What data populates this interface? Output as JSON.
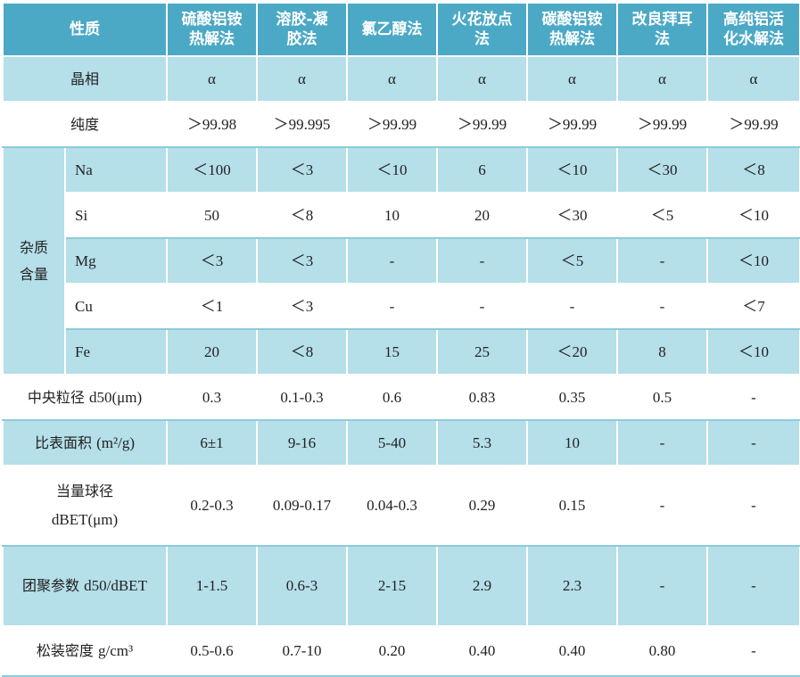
{
  "header": {
    "property": "性质",
    "methods": [
      {
        "line1": "硫酸铝铵",
        "line2": "热解法"
      },
      {
        "line1": "溶胶-凝",
        "line2": "胶法"
      },
      {
        "line1": "氯乙醇法",
        "line2": ""
      },
      {
        "line1": "火花放点",
        "line2": "法"
      },
      {
        "line1": "碳酸铝铵",
        "line2": "热解法"
      },
      {
        "line1": "改良拜耳",
        "line2": "法"
      },
      {
        "line1": "高纯铝活",
        "line2": "化水解法"
      }
    ]
  },
  "rows": {
    "crystal": {
      "label": "晶相",
      "values": [
        "α",
        "α",
        "α",
        "α",
        "α",
        "α",
        "α"
      ]
    },
    "purity": {
      "label": "纯度",
      "values": [
        "＞99.98",
        "＞99.995",
        "＞99.99",
        "＞99.99",
        "＞99.99",
        "＞99.99",
        "＞99.99"
      ]
    },
    "impurity_group": {
      "line1": "杂质",
      "line2": "含量"
    },
    "na": {
      "label": "Na",
      "values": [
        "＜100",
        "＜3",
        "＜10",
        "6",
        "＜10",
        "＜30",
        "＜8"
      ]
    },
    "si": {
      "label": "Si",
      "values": [
        "50",
        "＜8",
        "10",
        "20",
        "＜30",
        "＜5",
        "＜10"
      ]
    },
    "mg": {
      "label": "Mg",
      "values": [
        "＜3",
        "＜3",
        "-",
        "-",
        "＜5",
        "-",
        "＜10"
      ]
    },
    "cu": {
      "label": "Cu",
      "values": [
        "＜1",
        "＜3",
        "-",
        "-",
        "-",
        "-",
        "＜7"
      ]
    },
    "fe": {
      "label": "Fe",
      "values": [
        "20",
        "＜8",
        "15",
        "25",
        "＜20",
        "8",
        "＜10"
      ]
    },
    "d50": {
      "label_cn": "中央粒径 ",
      "label_unit": "d50(μm)",
      "values": [
        "0.3",
        "0.1-0.3",
        "0.6",
        "0.83",
        "0.35",
        "0.5",
        "-"
      ]
    },
    "ssa": {
      "label_cn": "比表面积 ",
      "label_unit": "(m²/g)",
      "values": [
        "6±1",
        "9-16",
        "5-40",
        "5.3",
        "10",
        "-",
        "-"
      ]
    },
    "dbet": {
      "line1": "当量球径",
      "line2": "dBET(μm)",
      "values": [
        "0.2-0.3",
        "0.09-0.17",
        "0.04-0.3",
        "0.29",
        "0.15",
        "-",
        "-"
      ]
    },
    "agg": {
      "label_cn": "团聚参数 ",
      "label_unit": "d50/dBET",
      "values": [
        "1-1.5",
        "0.6-3",
        "2-15",
        "2.9",
        "2.3",
        "-",
        "-"
      ]
    },
    "density": {
      "label_cn": "松装密度 ",
      "label_unit": "g/cm³",
      "values": [
        "0.5-0.6",
        "0.7-10",
        "0.20",
        "0.40",
        "0.40",
        "0.80",
        "-"
      ]
    }
  }
}
